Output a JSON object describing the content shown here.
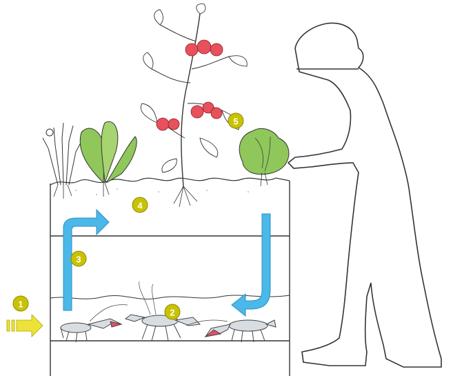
{
  "steps": [
    {
      "number": "1"
    },
    {
      "number": "2"
    },
    {
      "number": "3"
    },
    {
      "number": "4"
    },
    {
      "number": "5"
    }
  ],
  "colors": {
    "badge_fill": "#c9c200",
    "badge_stroke": "#8f8a00",
    "flow_arrow": "#4ab8e8",
    "input_arrow": "#ece23a",
    "tomato": "#e8505b",
    "leaf_green": "#8fc75a",
    "outline": "#333333",
    "crayfish": "#d8dde2",
    "crayfish_claw": "#e0506a"
  },
  "icons": [
    "input-arrow-icon",
    "flow-arrow-icon",
    "crayfish-icon",
    "tomato-plant-icon",
    "lettuce-icon",
    "chard-icon",
    "leek-icon",
    "gardener-silhouette-icon"
  ]
}
